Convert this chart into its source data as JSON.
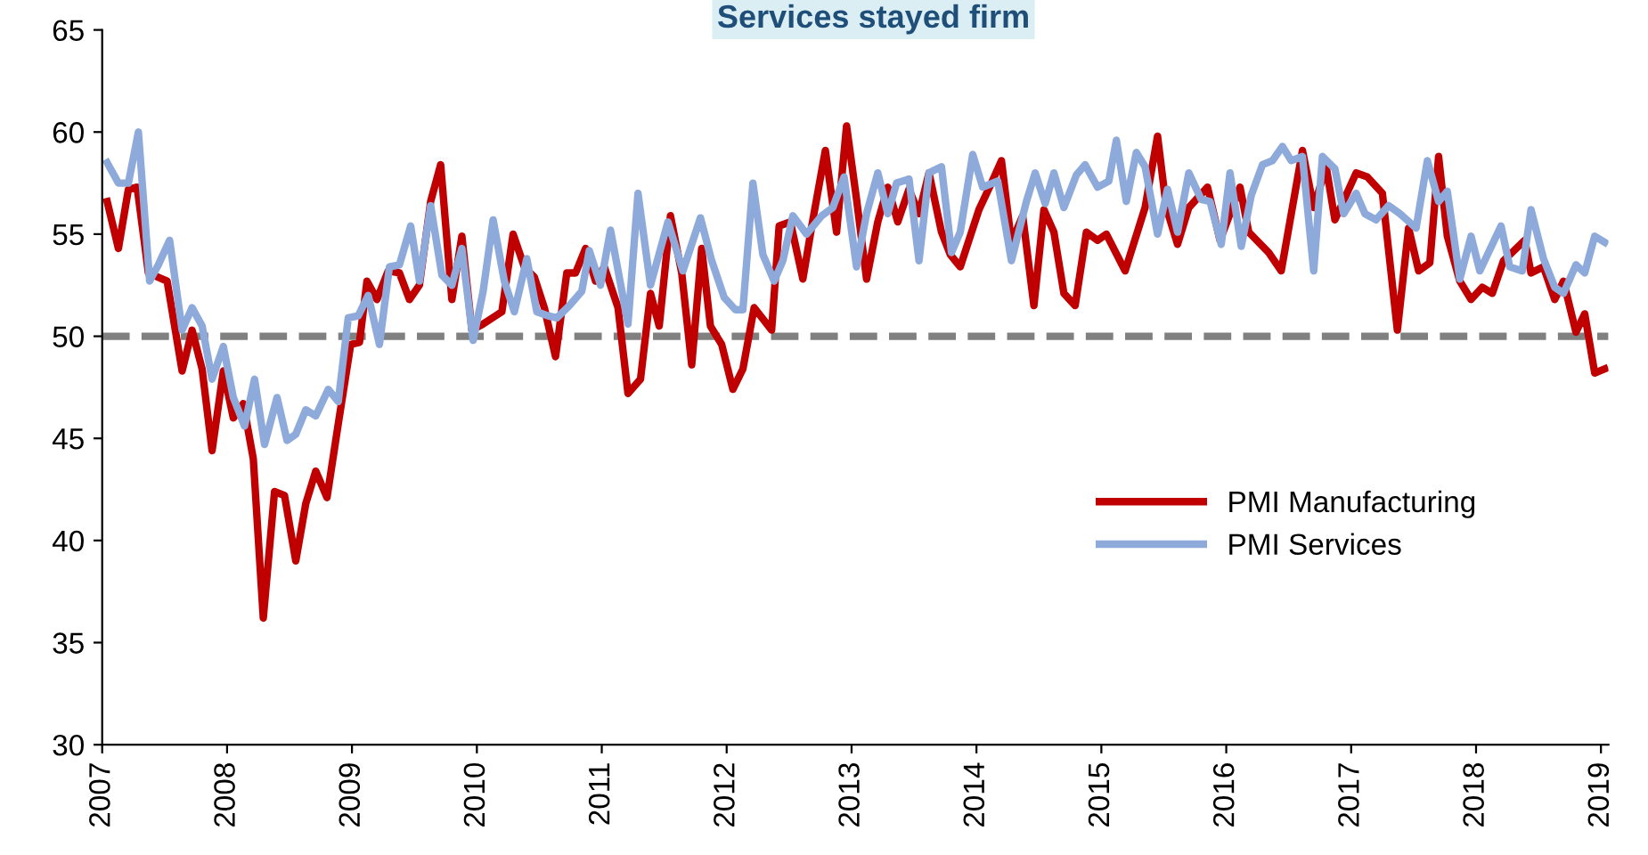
{
  "chart_data": {
    "type": "line",
    "title": "Services stayed firm",
    "xlim": [
      2007,
      2019.06
    ],
    "xticks": [
      2007,
      2008,
      2009,
      2010,
      2011,
      2012,
      2013,
      2014,
      2015,
      2016,
      2017,
      2018,
      2019
    ],
    "ylim": [
      30,
      65
    ],
    "yticks": [
      30,
      35,
      40,
      45,
      50,
      55,
      60,
      65
    ],
    "grid": false,
    "legend": "lower right",
    "marker": "none",
    "line_style": "solid",
    "ref_lines": [
      {
        "axis": "y",
        "value": 50,
        "color": "#808080",
        "line_style": "dashed"
      }
    ],
    "series": [
      {
        "name": "PMI Manufacturing",
        "color": "#c00000",
        "x": [
          2007.04,
          2007.13,
          2007.21,
          2007.28,
          2007.37,
          2007.52,
          2007.64,
          2007.72,
          2007.8,
          2007.88,
          2007.97,
          2008.05,
          2008.13,
          2008.21,
          2008.29,
          2008.38,
          2008.46,
          2008.55,
          2008.63,
          2008.71,
          2008.8,
          2008.89,
          2008.99,
          2009.06,
          2009.12,
          2009.2,
          2009.29,
          2009.38,
          2009.46,
          2009.54,
          2009.63,
          2009.71,
          2009.8,
          2009.88,
          2009.96,
          2010.05,
          2010.15,
          2010.2,
          2010.29,
          2010.38,
          2010.46,
          2010.54,
          2010.63,
          2010.72,
          2010.79,
          2010.87,
          2010.95,
          2011.02,
          2011.13,
          2011.21,
          2011.31,
          2011.39,
          2011.46,
          2011.55,
          2011.64,
          2011.72,
          2011.8,
          2011.87,
          2011.96,
          2012.05,
          2012.13,
          2012.22,
          2012.36,
          2012.42,
          2012.51,
          2012.61,
          2012.69,
          2012.79,
          2012.88,
          2012.96,
          2013.04,
          2013.12,
          2013.21,
          2013.29,
          2013.37,
          2013.46,
          2013.54,
          2013.62,
          2013.72,
          2013.79,
          2013.87,
          2014.02,
          2014.12,
          2014.2,
          2014.28,
          2014.37,
          2014.46,
          2014.54,
          2014.62,
          2014.7,
          2014.79,
          2014.88,
          2014.97,
          2015.04,
          2015.19,
          2015.35,
          2015.45,
          2015.52,
          2015.61,
          2015.7,
          2015.85,
          2015.95,
          2016.11,
          2016.18,
          2016.34,
          2016.44,
          2016.61,
          2016.7,
          2016.8,
          2016.87,
          2017.04,
          2017.13,
          2017.25,
          2017.37,
          2017.46,
          2017.54,
          2017.63,
          2017.7,
          2017.77,
          2017.87,
          2017.96,
          2018.05,
          2018.13,
          2018.22,
          2018.39,
          2018.44,
          2018.54,
          2018.63,
          2018.7,
          2018.8,
          2018.87,
          2018.95,
          2019.03
        ],
        "values": [
          56.6,
          54.3,
          57.2,
          57.3,
          53.1,
          52.7,
          48.3,
          50.3,
          48.4,
          44.4,
          48.3,
          46.0,
          46.7,
          44.0,
          36.2,
          42.4,
          42.2,
          39.0,
          41.8,
          43.4,
          42.1,
          45.7,
          49.6,
          49.7,
          52.7,
          51.8,
          53.2,
          53.1,
          51.8,
          52.5,
          56.6,
          58.4,
          51.8,
          54.9,
          50.3,
          50.6,
          51.0,
          51.2,
          55.0,
          53.4,
          52.9,
          51.4,
          49.0,
          53.1,
          53.1,
          54.3,
          52.7,
          53.4,
          51.4,
          47.2,
          47.9,
          52.1,
          50.5,
          55.9,
          53.1,
          48.6,
          54.3,
          50.5,
          49.6,
          47.4,
          48.4,
          51.4,
          50.3,
          55.4,
          55.6,
          52.8,
          55.7,
          59.1,
          55.1,
          60.3,
          56.7,
          52.8,
          55.6,
          57.3,
          55.6,
          57.2,
          56.0,
          58.0,
          55.1,
          54.0,
          53.4,
          56.2,
          57.5,
          58.6,
          54.6,
          55.9,
          51.5,
          56.2,
          55.1,
          52.1,
          51.5,
          55.1,
          54.7,
          55.0,
          53.2,
          56.3,
          59.8,
          56.3,
          54.5,
          56.3,
          57.3,
          54.7,
          57.3,
          55.1,
          54.1,
          53.2,
          59.1,
          56.3,
          58.3,
          55.7,
          58.0,
          57.8,
          57.0,
          50.3,
          55.3,
          53.2,
          53.6,
          58.8,
          54.9,
          52.7,
          51.8,
          52.4,
          52.1,
          53.7,
          54.7,
          53.1,
          53.4,
          51.8,
          52.7,
          50.2,
          51.1,
          48.2,
          48.4
        ]
      },
      {
        "name": "PMI Services",
        "color": "#8eaadb",
        "x": [
          2007.04,
          2007.13,
          2007.21,
          2007.29,
          2007.38,
          2007.45,
          2007.54,
          2007.64,
          2007.72,
          2007.8,
          2007.88,
          2007.97,
          2008.05,
          2008.14,
          2008.22,
          2008.3,
          2008.4,
          2008.48,
          2008.55,
          2008.63,
          2008.71,
          2008.81,
          2008.89,
          2008.97,
          2009.05,
          2009.13,
          2009.22,
          2009.3,
          2009.38,
          2009.47,
          2009.54,
          2009.63,
          2009.72,
          2009.8,
          2009.88,
          2009.97,
          2010.05,
          2010.13,
          2010.22,
          2010.3,
          2010.4,
          2010.48,
          2010.57,
          2010.64,
          2010.74,
          2010.84,
          2010.9,
          2010.99,
          2011.07,
          2011.21,
          2011.29,
          2011.39,
          2011.53,
          2011.65,
          2011.79,
          2011.88,
          2011.98,
          2012.07,
          2012.13,
          2012.21,
          2012.29,
          2012.38,
          2012.45,
          2012.53,
          2012.64,
          2012.76,
          2012.85,
          2012.94,
          2013.04,
          2013.12,
          2013.21,
          2013.29,
          2013.36,
          2013.46,
          2013.54,
          2013.62,
          2013.72,
          2013.8,
          2013.87,
          2013.97,
          2014.05,
          2014.17,
          2014.28,
          2014.4,
          2014.47,
          2014.55,
          2014.62,
          2014.7,
          2014.8,
          2014.87,
          2014.97,
          2015.06,
          2015.12,
          2015.2,
          2015.28,
          2015.35,
          2015.45,
          2015.53,
          2015.61,
          2015.7,
          2015.8,
          2015.87,
          2015.96,
          2016.03,
          2016.12,
          2016.2,
          2016.29,
          2016.37,
          2016.45,
          2016.52,
          2016.61,
          2016.7,
          2016.77,
          2016.87,
          2016.94,
          2017.04,
          2017.11,
          2017.2,
          2017.3,
          2017.39,
          2017.52,
          2017.61,
          2017.7,
          2017.77,
          2017.87,
          2017.96,
          2018.03,
          2018.2,
          2018.27,
          2018.37,
          2018.44,
          2018.54,
          2018.63,
          2018.7,
          2018.8,
          2018.87,
          2018.95,
          2019.03
        ],
        "values": [
          58.5,
          57.5,
          57.5,
          60.0,
          52.7,
          53.5,
          54.7,
          50.3,
          51.4,
          50.5,
          47.9,
          49.5,
          47.0,
          45.6,
          47.9,
          44.7,
          47.0,
          44.9,
          45.2,
          46.4,
          46.1,
          47.4,
          46.8,
          50.9,
          51.0,
          52.0,
          49.6,
          53.4,
          53.5,
          55.4,
          52.7,
          56.4,
          53.0,
          52.5,
          54.3,
          49.8,
          52.2,
          55.7,
          52.7,
          51.2,
          53.8,
          51.2,
          51.0,
          50.9,
          51.5,
          52.2,
          54.2,
          52.5,
          55.2,
          50.6,
          57.0,
          52.5,
          55.6,
          53.2,
          55.8,
          53.7,
          51.9,
          51.3,
          51.3,
          57.5,
          54.0,
          52.7,
          53.7,
          55.9,
          55.0,
          55.9,
          56.3,
          57.8,
          53.4,
          56.0,
          58.0,
          56.0,
          57.5,
          57.7,
          53.7,
          58.0,
          58.3,
          54.1,
          55.1,
          58.9,
          57.3,
          57.6,
          53.7,
          56.6,
          58.0,
          56.5,
          58.0,
          56.3,
          57.9,
          58.4,
          57.3,
          57.6,
          59.6,
          56.6,
          59.0,
          58.3,
          55.0,
          57.2,
          55.1,
          58.0,
          56.7,
          56.6,
          54.5,
          58.0,
          54.4,
          56.9,
          58.4,
          58.6,
          59.3,
          58.6,
          58.8,
          53.2,
          58.8,
          58.2,
          56.0,
          57.0,
          56.0,
          55.7,
          56.4,
          56.0,
          55.3,
          58.6,
          56.6,
          57.1,
          52.8,
          54.9,
          53.2,
          55.4,
          53.4,
          53.2,
          56.2,
          53.8,
          52.4,
          52.1,
          53.5,
          53.1,
          54.9,
          54.6
        ]
      }
    ]
  }
}
